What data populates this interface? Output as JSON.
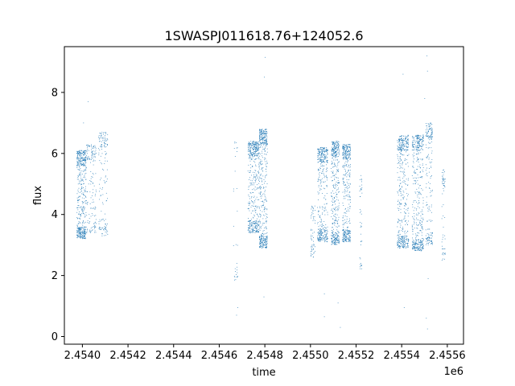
{
  "chart_data": {
    "type": "scatter",
    "title": "1SWASPJ011618.76+124052.6",
    "xlabel": "time",
    "ylabel": "flux",
    "x_offset_label": "1e6",
    "xlim": [
      2453920,
      2455670
    ],
    "ylim": [
      -0.25,
      9.5
    ],
    "x_ticks": [
      2453999,
      2454199,
      2454399,
      2454599,
      2454799,
      2454999,
      2455199,
      2455399,
      2455599
    ],
    "x_tick_labels": [
      "2.4540",
      "2.4542",
      "2.4544",
      "2.4546",
      "2.4548",
      "2.4550",
      "2.4552",
      "2.4554",
      "2.4556"
    ],
    "y_ticks": [
      0,
      2,
      4,
      6,
      8
    ],
    "y_tick_labels": [
      "0",
      "2",
      "4",
      "6",
      "8"
    ],
    "grid": false,
    "marker_color": "#1f77b4",
    "clusters": [
      {
        "x_range": [
          2453975,
          2454015
        ],
        "flux_band": [
          3.2,
          6.1
        ],
        "points": 520
      },
      {
        "x_range": [
          2454015,
          2454060
        ],
        "flux_band": [
          3.4,
          6.3
        ],
        "points": 160
      },
      {
        "x_range": [
          2454070,
          2454110
        ],
        "flux_band": [
          3.3,
          6.7
        ],
        "points": 150
      },
      {
        "x_range": [
          2454660,
          2454680
        ],
        "flux_band": [
          1.8,
          6.5
        ],
        "points": 30
      },
      {
        "x_range": [
          2454725,
          2454775
        ],
        "flux_band": [
          3.4,
          6.4
        ],
        "points": 480
      },
      {
        "x_range": [
          2454775,
          2454810
        ],
        "flux_band": [
          2.9,
          6.8
        ],
        "points": 480
      },
      {
        "x_range": [
          2455000,
          2455020
        ],
        "flux_band": [
          2.6,
          4.3
        ],
        "points": 60
      },
      {
        "x_range": [
          2455030,
          2455075
        ],
        "flux_band": [
          3.1,
          6.2
        ],
        "points": 420
      },
      {
        "x_range": [
          2455090,
          2455125
        ],
        "flux_band": [
          3.0,
          6.4
        ],
        "points": 430
      },
      {
        "x_range": [
          2455140,
          2455175
        ],
        "flux_band": [
          3.1,
          6.3
        ],
        "points": 420
      },
      {
        "x_range": [
          2455215,
          2455225
        ],
        "flux_band": [
          2.2,
          5.3
        ],
        "points": 40
      },
      {
        "x_range": [
          2455380,
          2455430
        ],
        "flux_band": [
          2.9,
          6.6
        ],
        "points": 480
      },
      {
        "x_range": [
          2455445,
          2455495
        ],
        "flux_band": [
          2.8,
          6.6
        ],
        "points": 480
      },
      {
        "x_range": [
          2455505,
          2455535
        ],
        "flux_band": [
          3.0,
          7.0
        ],
        "points": 200
      },
      {
        "x_range": [
          2455575,
          2455590
        ],
        "flux_band": [
          2.5,
          5.5
        ],
        "points": 60
      }
    ],
    "outliers": [
      {
        "x": 2454024,
        "y": 7.7
      },
      {
        "x": 2454675,
        "y": 0.7
      },
      {
        "x": 2454680,
        "y": 0.95
      },
      {
        "x": 2454797,
        "y": 8.5
      },
      {
        "x": 2454800,
        "y": 9.15
      },
      {
        "x": 2455060,
        "y": 0.65
      },
      {
        "x": 2455120,
        "y": 1.1
      },
      {
        "x": 2455130,
        "y": 0.3
      },
      {
        "x": 2455405,
        "y": 8.6
      },
      {
        "x": 2455410,
        "y": 0.95
      },
      {
        "x": 2455510,
        "y": 9.2
      },
      {
        "x": 2455512,
        "y": 8.7
      },
      {
        "x": 2455507,
        "y": 0.6
      },
      {
        "x": 2455512,
        "y": 0.25
      },
      {
        "x": 2455515,
        "y": 1.9
      },
      {
        "x": 2455500,
        "y": 7.8
      },
      {
        "x": 2454004,
        "y": 7.0
      },
      {
        "x": 2454795,
        "y": 1.3
      },
      {
        "x": 2455060,
        "y": 1.4
      },
      {
        "x": 2454676,
        "y": 2.4
      }
    ]
  }
}
